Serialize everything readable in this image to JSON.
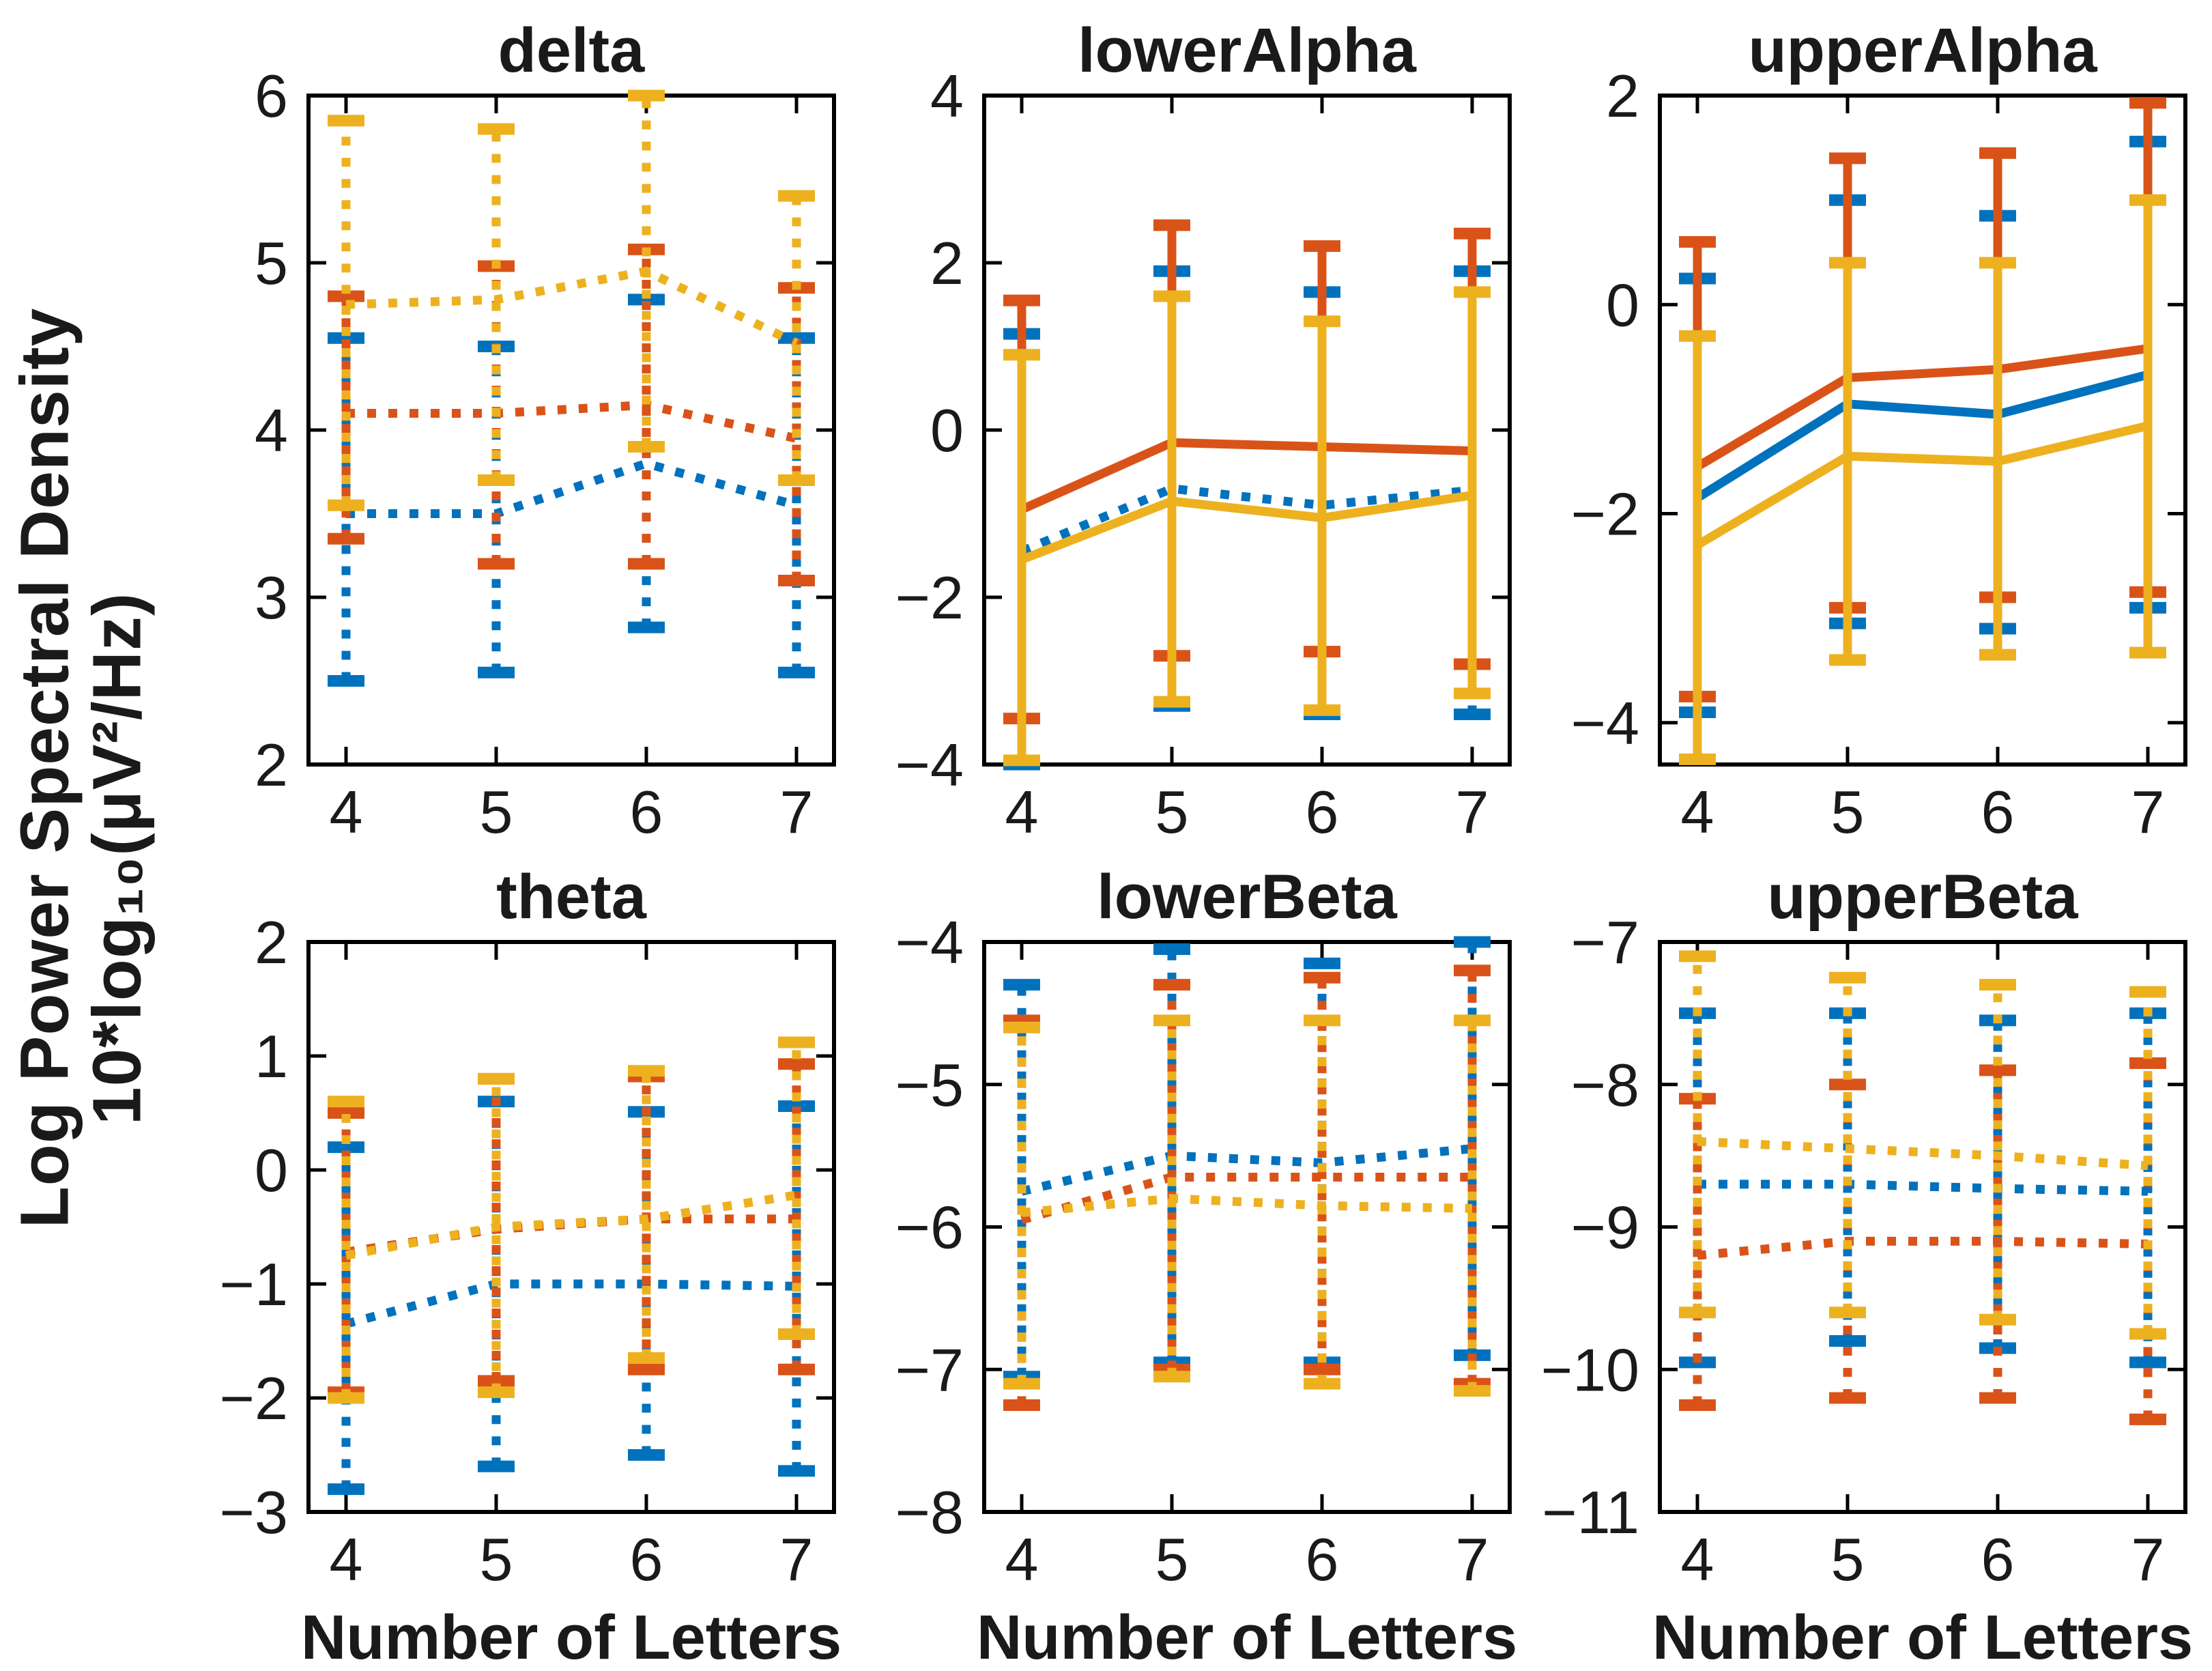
{
  "figure": {
    "background": "#ffffff"
  },
  "ylabel": {
    "line1": "Log Power Spectral Density",
    "line2": "10*log₁₀(μV²/Hz)"
  },
  "xlabel": "Number of Letters",
  "colors": {
    "blue": "#0072BD",
    "red": "#D95319",
    "yellow": "#EDB120"
  },
  "chart_data": [
    {
      "type": "line",
      "title": "delta",
      "x": [
        4,
        5,
        6,
        7
      ],
      "xticks": [
        4,
        5,
        6,
        7
      ],
      "xlim": [
        3.75,
        7.25
      ],
      "ylim": [
        2,
        6
      ],
      "yticks": [
        2,
        3,
        4,
        5,
        6
      ],
      "legend": "none",
      "grid": false,
      "series": [
        {
          "name": "blue",
          "color": "blue",
          "style": "dotted",
          "mean": [
            3.5,
            3.5,
            3.8,
            3.55
          ],
          "upper": [
            4.55,
            4.5,
            4.78,
            4.55
          ],
          "lower": [
            2.5,
            2.55,
            2.82,
            2.55
          ]
        },
        {
          "name": "red",
          "color": "red",
          "style": "dotted",
          "mean": [
            4.1,
            4.1,
            4.15,
            3.95
          ],
          "upper": [
            4.8,
            4.98,
            5.08,
            4.85
          ],
          "lower": [
            3.35,
            3.2,
            3.2,
            3.1
          ]
        },
        {
          "name": "yellow",
          "color": "yellow",
          "style": "dotted",
          "mean": [
            4.75,
            4.78,
            4.95,
            4.52
          ],
          "upper": [
            5.85,
            5.8,
            6.0,
            5.4
          ],
          "lower": [
            3.55,
            3.7,
            3.9,
            3.7
          ]
        }
      ]
    },
    {
      "type": "line",
      "title": "lowerAlpha",
      "x": [
        4,
        5,
        6,
        7
      ],
      "xticks": [
        4,
        5,
        6,
        7
      ],
      "xlim": [
        3.75,
        7.25
      ],
      "ylim": [
        -4,
        4
      ],
      "yticks": [
        -4,
        -2,
        0,
        2,
        4
      ],
      "legend": "none",
      "grid": false,
      "series": [
        {
          "name": "blue",
          "color": "blue",
          "style": "dotted",
          "mean": [
            -1.45,
            -0.7,
            -0.9,
            -0.72
          ],
          "upper": [
            1.15,
            1.9,
            1.65,
            1.9
          ],
          "lower": [
            -4.0,
            -3.3,
            -3.4,
            -3.4
          ]
        },
        {
          "name": "red",
          "color": "red",
          "style": "solid",
          "mean": [
            -0.95,
            -0.15,
            -0.2,
            -0.25
          ],
          "upper": [
            1.55,
            2.45,
            2.2,
            2.35
          ],
          "lower": [
            -3.45,
            -2.7,
            -2.65,
            -2.8
          ]
        },
        {
          "name": "yellow",
          "color": "yellow",
          "style": "solid",
          "mean": [
            -1.55,
            -0.85,
            -1.05,
            -0.78
          ],
          "upper": [
            0.9,
            1.6,
            1.3,
            1.65
          ],
          "lower": [
            -3.95,
            -3.25,
            -3.35,
            -3.15
          ]
        }
      ]
    },
    {
      "type": "line",
      "title": "upperAlpha",
      "x": [
        4,
        5,
        6,
        7
      ],
      "xticks": [
        4,
        5,
        6,
        7
      ],
      "xlim": [
        3.75,
        7.25
      ],
      "ylim": [
        -4.4,
        2
      ],
      "yticks": [
        -4,
        -2,
        0,
        2
      ],
      "legend": "none",
      "grid": false,
      "series": [
        {
          "name": "blue",
          "color": "blue",
          "style": "solid",
          "mean": [
            -1.85,
            -0.95,
            -1.05,
            -0.67
          ],
          "upper": [
            0.25,
            1.0,
            0.85,
            1.56
          ],
          "lower": [
            -3.9,
            -3.05,
            -3.1,
            -2.9
          ]
        },
        {
          "name": "red",
          "color": "red",
          "style": "solid",
          "mean": [
            -1.55,
            -0.7,
            -0.62,
            -0.42
          ],
          "upper": [
            0.6,
            1.4,
            1.45,
            1.93
          ],
          "lower": [
            -3.75,
            -2.9,
            -2.8,
            -2.75
          ]
        },
        {
          "name": "yellow",
          "color": "yellow",
          "style": "solid",
          "mean": [
            -2.3,
            -1.45,
            -1.5,
            -1.16
          ],
          "upper": [
            -0.3,
            0.4,
            0.4,
            1.0
          ],
          "lower": [
            -4.35,
            -3.4,
            -3.35,
            -3.33
          ]
        }
      ]
    },
    {
      "type": "line",
      "title": "theta",
      "xlabel": "Number of Letters",
      "x": [
        4,
        5,
        6,
        7
      ],
      "xticks": [
        4,
        5,
        6,
        7
      ],
      "xlim": [
        3.75,
        7.25
      ],
      "ylim": [
        -3,
        2
      ],
      "yticks": [
        -3,
        -2,
        -1,
        0,
        1,
        2
      ],
      "legend": "none",
      "grid": false,
      "series": [
        {
          "name": "blue",
          "color": "blue",
          "style": "dotted",
          "mean": [
            -1.35,
            -1.0,
            -1.0,
            -1.02
          ],
          "upper": [
            0.2,
            0.6,
            0.51,
            0.56
          ],
          "lower": [
            -2.8,
            -2.6,
            -2.5,
            -2.64
          ]
        },
        {
          "name": "red",
          "color": "red",
          "style": "dotted",
          "mean": [
            -0.72,
            -0.52,
            -0.43,
            -0.43
          ],
          "upper": [
            0.5,
            0.8,
            0.82,
            0.93
          ],
          "lower": [
            -1.95,
            -1.85,
            -1.75,
            -1.75
          ]
        },
        {
          "name": "yellow",
          "color": "yellow",
          "style": "dotted",
          "mean": [
            -0.75,
            -0.5,
            -0.43,
            -0.22
          ],
          "upper": [
            0.6,
            0.8,
            0.87,
            1.12
          ],
          "lower": [
            -2.0,
            -1.95,
            -1.65,
            -1.44
          ]
        }
      ]
    },
    {
      "type": "line",
      "title": "lowerBeta",
      "xlabel": "Number of Letters",
      "x": [
        4,
        5,
        6,
        7
      ],
      "xticks": [
        4,
        5,
        6,
        7
      ],
      "xlim": [
        3.75,
        7.25
      ],
      "ylim": [
        -8,
        -4
      ],
      "yticks": [
        -8,
        -7,
        -6,
        -5,
        -4
      ],
      "legend": "none",
      "grid": false,
      "series": [
        {
          "name": "blue",
          "color": "blue",
          "style": "dotted",
          "mean": [
            -5.75,
            -5.5,
            -5.55,
            -5.45
          ],
          "upper": [
            -4.3,
            -4.05,
            -4.15,
            -4.0
          ],
          "lower": [
            -7.05,
            -6.95,
            -6.95,
            -6.9
          ]
        },
        {
          "name": "red",
          "color": "red",
          "style": "dotted",
          "mean": [
            -5.95,
            -5.65,
            -5.65,
            -5.65
          ],
          "upper": [
            -4.55,
            -4.3,
            -4.25,
            -4.2
          ],
          "lower": [
            -7.25,
            -7.0,
            -7.0,
            -7.1
          ]
        },
        {
          "name": "yellow",
          "color": "yellow",
          "style": "dotted",
          "mean": [
            -5.9,
            -5.8,
            -5.85,
            -5.87
          ],
          "upper": [
            -4.6,
            -4.55,
            -4.55,
            -4.55
          ],
          "lower": [
            -7.1,
            -7.05,
            -7.1,
            -7.15
          ]
        }
      ]
    },
    {
      "type": "line",
      "title": "upperBeta",
      "xlabel": "Number of Letters",
      "x": [
        4,
        5,
        6,
        7
      ],
      "xticks": [
        4,
        5,
        6,
        7
      ],
      "xlim": [
        3.75,
        7.25
      ],
      "ylim": [
        -11,
        -7
      ],
      "yticks": [
        -11,
        -10,
        -9,
        -8,
        -7
      ],
      "legend": "none",
      "grid": false,
      "series": [
        {
          "name": "blue",
          "color": "blue",
          "style": "dotted",
          "mean": [
            -8.7,
            -8.7,
            -8.73,
            -8.75
          ],
          "upper": [
            -7.5,
            -7.5,
            -7.55,
            -7.5
          ],
          "lower": [
            -9.95,
            -9.8,
            -9.85,
            -9.95
          ]
        },
        {
          "name": "red",
          "color": "red",
          "style": "dotted",
          "mean": [
            -9.2,
            -9.1,
            -9.1,
            -9.12
          ],
          "upper": [
            -8.1,
            -8.0,
            -7.9,
            -7.85
          ],
          "lower": [
            -10.25,
            -10.2,
            -10.2,
            -10.35
          ]
        },
        {
          "name": "yellow",
          "color": "yellow",
          "style": "dotted",
          "mean": [
            -8.4,
            -8.45,
            -8.5,
            -8.57
          ],
          "upper": [
            -7.1,
            -7.25,
            -7.3,
            -7.35
          ],
          "lower": [
            -9.6,
            -9.6,
            -9.65,
            -9.75
          ]
        }
      ]
    }
  ]
}
